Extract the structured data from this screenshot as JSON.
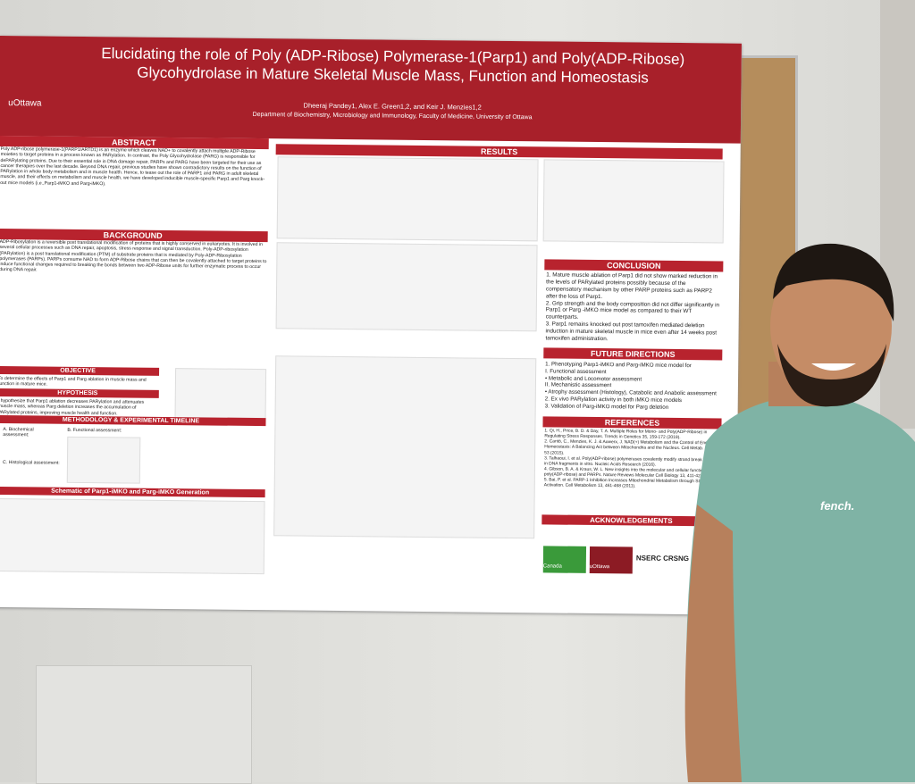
{
  "poster": {
    "logo": "uOttawa",
    "title_line1": "Elucidating the role of Poly (ADP-Ribose) Polymerase-1(Parp1) and Poly(ADP-Ribose)",
    "title_line2": "Glycohydrolase in Mature Skeletal Muscle Mass, Function and Homeostasis",
    "authors": "Dheeraj Pandey1, Alex E. Green1,2, and Keir J. Menzies1,2",
    "affiliation": "Department of Biochemistry, Microbiology and Immunology, Faculty of Medicine, University of Ottawa",
    "abstract": {
      "heading": "ABSTRACT",
      "text": "Poly ADP-ribose polymerase-1(PARP1/ARTD1) is an enzyme which cleaves NAD+ to covalently attach multiple ADP-Ribose moieties to target proteins in a process known as PARylation. In contrast, the Poly Glycohydrolase (PARG) is responsible for dePARylating proteins. Due to their essential role in DNA damage repair, PARPs and PARG have been targeted for their use as cancer therapies over the last decade. Beyond DNA repair, previous studies have shown contradictory results on the function of PARylation in whole body metabolism and in muscle health. Hence, to tease out the role of PARP1 and PARG in adult skeletal muscle, and their effects on metabolism and muscle health, we have developed inducible muscle-specific Parp1 and Parg knock-out mice models (i.e.,Parp1-iMKO and Parg-iMKO)."
    },
    "background": {
      "heading": "BACKGROUND",
      "text": "ADP-Ribosylation is a reversible post translational modification of proteins that is highly conserved in eukaryotes. It is involved in several cellular processes such as DNA repair, apoptosis, stress response and signal transduction. Poly-ADP-ribosylation (PARylation) is a post translational modification (PTM) of substrate proteins that is mediated by Poly-ADP-Ribosylation polymerases (PARPs). PARPs consume NAD to form ADP-Ribose chains that can then be covalently attached to target proteins to induce functional changes required to breaking the bonds between two ADP-Ribose units for further enzymatic process to occur during DNA repair."
    },
    "objective": {
      "heading": "OBJECTIVE",
      "text": "To determine the effects of Parp1 and Parg ablation in muscle mass and function in mature mice."
    },
    "hypothesis": {
      "heading": "HYPOTHESIS",
      "text": "I hypothesize that Parp1 ablation decreases PARylation and attenuates muscle mass, whereas Parg deletion increases the accumulation of PARylated proteins, improving muscle health and function."
    },
    "methodology": {
      "heading": "METHODOLOGY & EXPERIMENTAL TIMELINE",
      "items": [
        "A. Biochemical assessment:",
        "B. Functional assessment:",
        "C. Histological assessment:"
      ]
    },
    "schematic": "Schematic of Parp1-iMKO and Parg-iMKO Generation",
    "results": {
      "heading": "RESULTS"
    },
    "conclusion": {
      "heading": "CONCLUSION",
      "items": [
        "1. Mature muscle ablation of Parp1 did not show marked reduction in the levels of PARylated proteins possibly because of the compensatory mechanism by other PARP proteins such as PARP2 after the loss of Parp1.",
        "2. Grip strength and the body composition did not differ significantly in Parp1 or Parg -iMKO mice model as compared to their WT counterparts.",
        "3. Parp1 remains knocked out post tamoxifen mediated deletion induction in mature skeletal muscle in mice even after 14 weeks post tamoxifen administration."
      ]
    },
    "future": {
      "heading": "FUTURE DIRECTIONS",
      "items": [
        "1. Phenotyping Parp1-iMKO and Parg-iMKO mice model for",
        "I. Functional assessment",
        "• Metabolic and Locomotor assessment",
        "II. Mechanistic assessment",
        "• Atrophy assessment (Histology), Catabolic and Anabolic assessment",
        "2. Ex vivo PARylation activity in both iMKO mice models",
        "3. Validation of Parg-iMKO model for Parg deletion"
      ]
    },
    "references": {
      "heading": "REFERENCES",
      "items": [
        "1. Qi, H., Price, B. D. & Day, T. A. Multiple Roles for Mono- and Poly(ADP-Ribose) in Regulating Stress Responses. Trends in Genetics 35, 159-172 (2019).",
        "2. Cantó, C., Menzies, K. J. & Auwerx, J. NAD(+) Metabolism and the Control of Energy Homeostasis: A Balancing Act between Mitochondria and the Nucleus. Cell Metab. 22, 31-53 (2015).",
        "3. Talhaoui, I. et al. Poly(ADP-ribose) polymerases covalently modify strand break termini in DNA fragments in vitro. Nucleic Acids Research (2016).",
        "4. Gibson, B. A. & Kraus, W. L. New insights into the molecular and cellular functions of poly(ADP-ribose) and PARPs. Nature Reviews Molecular Cell Biology 13, 411-424 (2012).",
        "5. Bai, P. et al. PARP-1 Inhibition Increases Mitochondrial Metabolism through SIRT1 Activation. Cell Metabolism 13, 461-468 (2011)."
      ]
    },
    "acknowledgements": {
      "heading": "ACKNOWLEDGEMENTS"
    },
    "sponsors": [
      "Canada",
      "uOttawa",
      "NSERC CRSNG"
    ],
    "shirt": "fench."
  }
}
